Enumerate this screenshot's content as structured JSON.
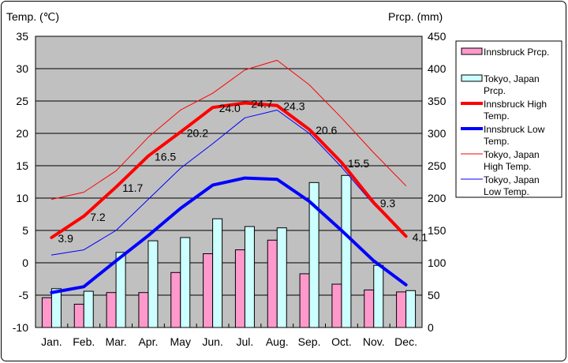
{
  "chart_data": {
    "type": "bar",
    "left_axis_label": "Temp. (℃)",
    "right_axis_label": "Prcp. (mm)",
    "categories": [
      "Jan.",
      "Feb.",
      "Mar.",
      "Apr.",
      "May",
      "Jun.",
      "Jul.",
      "Aug.",
      "Sep.",
      "Oct.",
      "Nov.",
      "Dec."
    ],
    "ylim_left": [
      -10,
      35
    ],
    "ylim_right": [
      0,
      450
    ],
    "left_ticks": [
      "35",
      "30",
      "25",
      "20",
      "15",
      "10",
      "5",
      "0",
      "-5",
      "-10"
    ],
    "right_ticks": [
      "450",
      "400",
      "350",
      "300",
      "250",
      "200",
      "150",
      "100",
      "50",
      "0"
    ],
    "legend_position": "right",
    "bar_series": [
      {
        "name": "Innsbruck Prcp.",
        "color": "#ff99cc",
        "values": [
          46,
          36,
          54,
          54,
          85,
          114,
          120,
          135,
          83,
          67,
          58,
          55
        ]
      },
      {
        "name": "Tokyo, Japan Prcp.",
        "color": "#ccffff",
        "values": [
          60,
          56,
          116,
          134,
          139,
          168,
          156,
          154,
          224,
          235,
          96,
          57
        ]
      }
    ],
    "line_series": [
      {
        "name": "Innsbruck High Temp.",
        "color": "#ff0000",
        "width": 4,
        "labeled": true,
        "values": [
          3.9,
          7.2,
          11.7,
          16.5,
          20.2,
          24.0,
          24.7,
          24.3,
          20.6,
          15.5,
          9.3,
          4.1
        ],
        "labels": [
          "3.9",
          "7.2",
          "11.7",
          "16.5",
          "20.2",
          "24.0",
          "24.7",
          "24.3",
          "20.6",
          "15.5",
          "9.3",
          "4.1"
        ]
      },
      {
        "name": "Innsbruck Low Temp.",
        "color": "#0000ff",
        "width": 4,
        "labeled": false,
        "values": [
          -4.6,
          -3.7,
          0.3,
          4.2,
          8.4,
          12.0,
          13.1,
          12.9,
          9.5,
          5.0,
          0.3,
          -3.4
        ]
      },
      {
        "name": "Tokyo, Japan High Temp.",
        "color": "#ff0000",
        "width": 1,
        "labeled": false,
        "values": [
          9.8,
          10.9,
          14.2,
          19.4,
          23.6,
          26.2,
          29.8,
          31.3,
          27.5,
          22.4,
          17.0,
          11.9
        ]
      },
      {
        "name": "Tokyo, Japan Low Temp.",
        "color": "#0000ff",
        "width": 1,
        "labeled": false,
        "values": [
          1.2,
          2.0,
          5.0,
          9.8,
          14.6,
          18.4,
          22.4,
          23.6,
          20.0,
          14.8,
          9.0,
          4.0
        ]
      }
    ],
    "legend": [
      {
        "label": [
          "Innsbruck Prcp."
        ],
        "kind": "bar",
        "color": "#ff99cc"
      },
      {
        "label": [
          "Tokyo, Japan",
          "Prcp."
        ],
        "kind": "bar",
        "color": "#ccffff"
      },
      {
        "label": [
          "Innsbruck High",
          "Temp."
        ],
        "kind": "line",
        "color": "#ff0000",
        "width": 4
      },
      {
        "label": [
          "Innsbruck Low",
          "Temp."
        ],
        "kind": "line",
        "color": "#0000ff",
        "width": 4
      },
      {
        "label": [
          "Tokyo, Japan",
          "High Temp."
        ],
        "kind": "line",
        "color": "#ff0000",
        "width": 1
      },
      {
        "label": [
          "Tokyo, Japan",
          "Low Temp."
        ],
        "kind": "line",
        "color": "#0000ff",
        "width": 1
      }
    ]
  }
}
